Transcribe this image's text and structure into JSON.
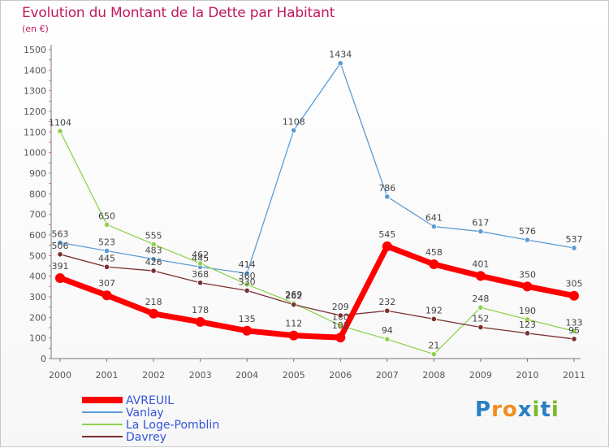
{
  "title": "Evolution du Montant de la Dette par Habitant",
  "subtitle": "(en €)",
  "logo": {
    "text": "Proxiti",
    "letters": [
      {
        "c": "P",
        "color": "#2a7fc4"
      },
      {
        "c": "r",
        "color": "#f28c1e"
      },
      {
        "c": "o",
        "color": "#f28c1e"
      },
      {
        "c": "x",
        "color": "#2a7fc4"
      },
      {
        "c": "i",
        "color": "#7cba2a"
      },
      {
        "c": "t",
        "color": "#2a7fc4"
      },
      {
        "c": "i",
        "color": "#7cba2a"
      }
    ]
  },
  "chart_data": {
    "type": "line",
    "title": "Evolution du Montant de la Dette par Habitant",
    "subtitle": "(en €)",
    "x": [
      "2000",
      "2001",
      "2002",
      "2003",
      "2004",
      "2005",
      "2006",
      "2007",
      "2008",
      "2009",
      "2010",
      "2011"
    ],
    "ylim": [
      0,
      1500
    ],
    "yticks": [
      0,
      100,
      200,
      300,
      400,
      500,
      600,
      700,
      800,
      900,
      1000,
      1100,
      1200,
      1300,
      1400,
      1500
    ],
    "grid": false,
    "legend_position": "bottom-left",
    "series": [
      {
        "name": "Vanlay",
        "color": "#5b9bd5",
        "values": [
          563,
          523,
          483,
          445,
          414,
          1108,
          1434,
          786,
          641,
          617,
          576,
          537
        ]
      },
      {
        "name": "La Loge-Pomblin",
        "color": "#8fd14f",
        "values": [
          1104,
          650,
          555,
          462,
          360,
          269,
          160,
          94,
          21,
          248,
          190,
          133
        ]
      },
      {
        "name": "Davrey",
        "color": "#7a2e2e",
        "values": [
          506,
          445,
          426,
          368,
          330,
          262,
          209,
          232,
          192,
          152,
          123,
          95
        ]
      },
      {
        "name": "AVREUIL",
        "color": "#ff0000",
        "values": [
          391,
          307,
          218,
          178,
          135,
          112,
          102,
          545,
          458,
          401,
          350,
          305
        ]
      }
    ],
    "legend": [
      "AVREUIL",
      "Vanlay",
      "La Loge-Pomblin",
      "Davrey"
    ]
  }
}
